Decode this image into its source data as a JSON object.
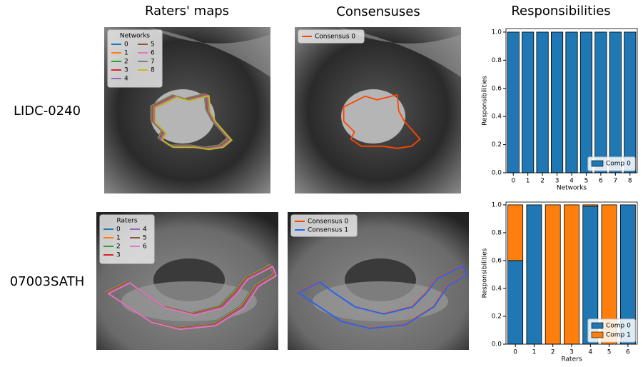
{
  "column_titles": [
    "Raters' maps",
    "Consensuses",
    "Responsibilities"
  ],
  "row_labels": [
    "LIDC-0240",
    "07003SATH"
  ],
  "image_panels": [
    {
      "legend_title": "Networks",
      "entries": [
        {
          "label": "0",
          "color": "#1f77b4"
        },
        {
          "label": "1",
          "color": "#ff7f0e"
        },
        {
          "label": "2",
          "color": "#2ca02c"
        },
        {
          "label": "3",
          "color": "#d62728"
        },
        {
          "label": "4",
          "color": "#9467bd"
        },
        {
          "label": "5",
          "color": "#8c564b"
        },
        {
          "label": "6",
          "color": "#e377c2"
        },
        {
          "label": "7",
          "color": "#7f7f7f"
        },
        {
          "label": "8",
          "color": "#bcbd22"
        }
      ]
    },
    {
      "entries": [
        {
          "label": "Consensus 0",
          "color": "#ff4500"
        }
      ]
    },
    {
      "legend_title": "Raters",
      "entries": [
        {
          "label": "0",
          "color": "#1f77b4"
        },
        {
          "label": "1",
          "color": "#ff7f0e"
        },
        {
          "label": "2",
          "color": "#2ca02c"
        },
        {
          "label": "3",
          "color": "#d62728"
        },
        {
          "label": "4",
          "color": "#9467bd"
        },
        {
          "label": "5",
          "color": "#8c564b"
        },
        {
          "label": "6",
          "color": "#e377c2"
        }
      ]
    },
    {
      "entries": [
        {
          "label": "Consensus 0",
          "color": "#ff4500"
        },
        {
          "label": "Consensus 1",
          "color": "#1e64ff"
        }
      ]
    }
  ],
  "chart_data": [
    {
      "type": "bar",
      "stacked": true,
      "categories": [
        "0",
        "1",
        "2",
        "3",
        "4",
        "5",
        "6",
        "7",
        "8"
      ],
      "series": [
        {
          "name": "Comp 0",
          "color": "#1f77b4",
          "values": [
            1,
            1,
            1,
            1,
            1,
            1,
            1,
            1,
            1
          ]
        }
      ],
      "ylim": [
        0,
        1.025
      ],
      "yticks": [
        {
          "value": 0,
          "label": "0.0"
        },
        {
          "value": 0.2,
          "label": "0.2"
        },
        {
          "value": 0.4,
          "label": "0.4"
        },
        {
          "value": 0.6,
          "label": "0.6"
        },
        {
          "value": 0.8,
          "label": "0.8"
        },
        {
          "value": 1,
          "label": "1.0"
        }
      ],
      "y_label": "Responsibilities",
      "x_label": "Networks",
      "legend": "lower right"
    },
    {
      "type": "bar",
      "stacked": true,
      "categories": [
        "0",
        "1",
        "2",
        "3",
        "4",
        "5",
        "6"
      ],
      "series": [
        {
          "name": "Comp 0",
          "color": "#1f77b4",
          "values": [
            0.6,
            1,
            0,
            0,
            0.99,
            0,
            1
          ]
        },
        {
          "name": "Comp 1",
          "color": "#ff7f0e",
          "values": [
            0.4,
            0,
            1,
            1,
            0.01,
            1,
            0
          ]
        }
      ],
      "ylim": [
        0,
        1.02
      ],
      "yticks": [
        {
          "value": 0,
          "label": "0.0"
        },
        {
          "value": 0.2,
          "label": "0.2"
        },
        {
          "value": 0.4,
          "label": "0.4"
        },
        {
          "value": 0.6,
          "label": "0.6"
        },
        {
          "value": 0.8,
          "label": "0.8"
        },
        {
          "value": 1,
          "label": "1.0"
        }
      ],
      "y_label": "Responsibilities",
      "x_label": "Raters",
      "legend": "lower right"
    }
  ]
}
